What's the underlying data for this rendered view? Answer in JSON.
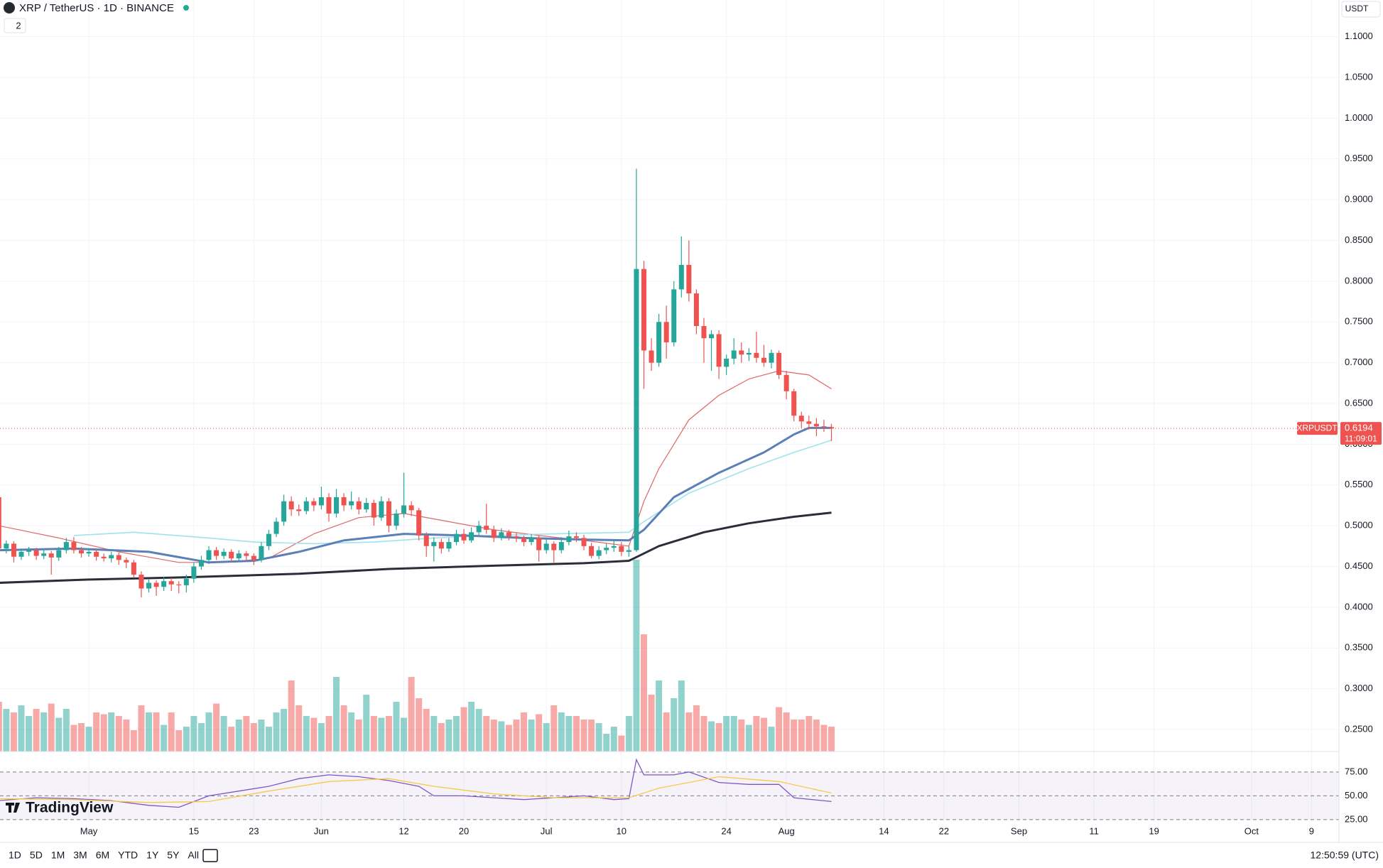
{
  "header": {
    "symbol": "XRP / TetherUS · 1D · BINANCE",
    "indicator_count": 2,
    "currency": "USDT"
  },
  "toolbar": {
    "timeframes": [
      "1D",
      "5D",
      "1M",
      "3M",
      "6M",
      "YTD",
      "1Y",
      "5Y",
      "All"
    ],
    "clock": "12:50:59 (UTC)",
    "brand": "TradingView"
  },
  "chart_data": {
    "type": "candlestick",
    "price_tag": "XRPUSDT",
    "last_price": 0.6194,
    "countdown": "11:09:01",
    "up_color": "#26a69a",
    "down_color": "#ef5350",
    "xlim": [
      0.16,
      178.66
    ],
    "xticks": [
      {
        "value": 12,
        "label": "May"
      },
      {
        "value": 26,
        "label": "15"
      },
      {
        "value": 34,
        "label": "23"
      },
      {
        "value": 43,
        "label": "Jun"
      },
      {
        "value": 54,
        "label": "12"
      },
      {
        "value": 62,
        "label": "20"
      },
      {
        "value": 73,
        "label": "Jul"
      },
      {
        "value": 83,
        "label": "10"
      },
      {
        "value": 97,
        "label": "24"
      },
      {
        "value": 105,
        "label": "Aug"
      },
      {
        "value": 118,
        "label": "14"
      },
      {
        "value": 126,
        "label": "22"
      },
      {
        "value": 136,
        "label": "Sep"
      },
      {
        "value": 146,
        "label": "11"
      },
      {
        "value": 154,
        "label": "19"
      },
      {
        "value": 167,
        "label": "Oct"
      },
      {
        "value": 175,
        "label": "9"
      }
    ],
    "ylim": [
      0.223,
      1.145
    ],
    "yticks": [
      {
        "value": 0.25,
        "label": "0.2500"
      },
      {
        "value": 0.3,
        "label": "0.3000"
      },
      {
        "value": 0.35,
        "label": "0.3500"
      },
      {
        "value": 0.4,
        "label": "0.4000"
      },
      {
        "value": 0.45,
        "label": "0.4500"
      },
      {
        "value": 0.5,
        "label": "0.5000"
      },
      {
        "value": 0.55,
        "label": "0.5500"
      },
      {
        "value": 0.6,
        "label": "0.6000"
      },
      {
        "value": 0.65,
        "label": "0.6500"
      },
      {
        "value": 0.7,
        "label": "0.7000"
      },
      {
        "value": 0.75,
        "label": "0.7500"
      },
      {
        "value": 0.8,
        "label": "0.8000"
      },
      {
        "value": 0.85,
        "label": "0.8500"
      },
      {
        "value": 0.9,
        "label": "0.9000"
      },
      {
        "value": 0.95,
        "label": "0.9500"
      },
      {
        "value": 1.0,
        "label": "1.0000"
      },
      {
        "value": 1.05,
        "label": "1.0500"
      },
      {
        "value": 1.1,
        "label": "1.1000"
      }
    ],
    "grid": true,
    "candles": [
      [
        0.535,
        0.54,
        0.468,
        0.472
      ],
      [
        0.472,
        0.482,
        0.466,
        0.478
      ],
      [
        0.478,
        0.481,
        0.455,
        0.462
      ],
      [
        0.462,
        0.472,
        0.458,
        0.468
      ],
      [
        0.468,
        0.474,
        0.463,
        0.47
      ],
      [
        0.47,
        0.473,
        0.458,
        0.463
      ],
      [
        0.463,
        0.47,
        0.459,
        0.466
      ],
      [
        0.466,
        0.469,
        0.44,
        0.461
      ],
      [
        0.461,
        0.474,
        0.457,
        0.47
      ],
      [
        0.47,
        0.485,
        0.466,
        0.48
      ],
      [
        0.48,
        0.486,
        0.466,
        0.47
      ],
      [
        0.47,
        0.474,
        0.461,
        0.466
      ],
      [
        0.466,
        0.472,
        0.462,
        0.468
      ],
      [
        0.468,
        0.471,
        0.457,
        0.462
      ],
      [
        0.462,
        0.466,
        0.456,
        0.46
      ],
      [
        0.46,
        0.468,
        0.455,
        0.464
      ],
      [
        0.464,
        0.467,
        0.452,
        0.458
      ],
      [
        0.458,
        0.461,
        0.448,
        0.455
      ],
      [
        0.455,
        0.458,
        0.436,
        0.44
      ],
      [
        0.44,
        0.444,
        0.412,
        0.423
      ],
      [
        0.423,
        0.434,
        0.418,
        0.43
      ],
      [
        0.43,
        0.433,
        0.414,
        0.425
      ],
      [
        0.425,
        0.437,
        0.42,
        0.432
      ],
      [
        0.432,
        0.436,
        0.42,
        0.428
      ],
      [
        0.428,
        0.432,
        0.417,
        0.427
      ],
      [
        0.427,
        0.44,
        0.418,
        0.435
      ],
      [
        0.435,
        0.455,
        0.43,
        0.45
      ],
      [
        0.45,
        0.463,
        0.446,
        0.458
      ],
      [
        0.458,
        0.475,
        0.453,
        0.47
      ],
      [
        0.47,
        0.474,
        0.458,
        0.463
      ],
      [
        0.463,
        0.472,
        0.459,
        0.468
      ],
      [
        0.468,
        0.471,
        0.455,
        0.46
      ],
      [
        0.46,
        0.47,
        0.456,
        0.466
      ],
      [
        0.466,
        0.469,
        0.456,
        0.463
      ],
      [
        0.463,
        0.466,
        0.452,
        0.458
      ],
      [
        0.458,
        0.48,
        0.455,
        0.475
      ],
      [
        0.475,
        0.495,
        0.47,
        0.49
      ],
      [
        0.49,
        0.51,
        0.486,
        0.505
      ],
      [
        0.505,
        0.538,
        0.5,
        0.53
      ],
      [
        0.53,
        0.536,
        0.512,
        0.52
      ],
      [
        0.52,
        0.526,
        0.512,
        0.518
      ],
      [
        0.518,
        0.535,
        0.514,
        0.53
      ],
      [
        0.53,
        0.534,
        0.518,
        0.525
      ],
      [
        0.525,
        0.548,
        0.52,
        0.535
      ],
      [
        0.535,
        0.54,
        0.505,
        0.515
      ],
      [
        0.515,
        0.545,
        0.51,
        0.535
      ],
      [
        0.535,
        0.54,
        0.518,
        0.525
      ],
      [
        0.525,
        0.542,
        0.52,
        0.53
      ],
      [
        0.53,
        0.535,
        0.514,
        0.52
      ],
      [
        0.52,
        0.534,
        0.516,
        0.528
      ],
      [
        0.528,
        0.532,
        0.5,
        0.51
      ],
      [
        0.51,
        0.536,
        0.506,
        0.53
      ],
      [
        0.53,
        0.534,
        0.492,
        0.5
      ],
      [
        0.5,
        0.52,
        0.495,
        0.515
      ],
      [
        0.515,
        0.565,
        0.51,
        0.525
      ],
      [
        0.525,
        0.53,
        0.512,
        0.519
      ],
      [
        0.519,
        0.522,
        0.482,
        0.488
      ],
      [
        0.488,
        0.492,
        0.462,
        0.475
      ],
      [
        0.475,
        0.486,
        0.456,
        0.48
      ],
      [
        0.48,
        0.484,
        0.466,
        0.472
      ],
      [
        0.472,
        0.485,
        0.468,
        0.48
      ],
      [
        0.48,
        0.495,
        0.476,
        0.49
      ],
      [
        0.49,
        0.496,
        0.478,
        0.482
      ],
      [
        0.482,
        0.498,
        0.479,
        0.492
      ],
      [
        0.492,
        0.506,
        0.488,
        0.5
      ],
      [
        0.5,
        0.527,
        0.49,
        0.495
      ],
      [
        0.495,
        0.5,
        0.48,
        0.485
      ],
      [
        0.485,
        0.497,
        0.482,
        0.492
      ],
      [
        0.492,
        0.495,
        0.482,
        0.487
      ],
      [
        0.487,
        0.492,
        0.48,
        0.485
      ],
      [
        0.485,
        0.488,
        0.475,
        0.48
      ],
      [
        0.48,
        0.49,
        0.476,
        0.485
      ],
      [
        0.485,
        0.488,
        0.456,
        0.47
      ],
      [
        0.47,
        0.483,
        0.466,
        0.478
      ],
      [
        0.478,
        0.481,
        0.455,
        0.47
      ],
      [
        0.47,
        0.486,
        0.466,
        0.48
      ],
      [
        0.48,
        0.494,
        0.476,
        0.487
      ],
      [
        0.487,
        0.492,
        0.48,
        0.485
      ],
      [
        0.485,
        0.489,
        0.47,
        0.475
      ],
      [
        0.475,
        0.479,
        0.46,
        0.463
      ],
      [
        0.463,
        0.475,
        0.459,
        0.47
      ],
      [
        0.47,
        0.478,
        0.465,
        0.473
      ],
      [
        0.473,
        0.482,
        0.468,
        0.475
      ],
      [
        0.475,
        0.48,
        0.463,
        0.468
      ],
      [
        0.468,
        0.475,
        0.462,
        0.47
      ],
      [
        0.47,
        0.938,
        0.468,
        0.815
      ],
      [
        0.815,
        0.825,
        0.668,
        0.715
      ],
      [
        0.715,
        0.73,
        0.69,
        0.7
      ],
      [
        0.7,
        0.76,
        0.695,
        0.75
      ],
      [
        0.75,
        0.77,
        0.705,
        0.725
      ],
      [
        0.725,
        0.8,
        0.72,
        0.79
      ],
      [
        0.79,
        0.855,
        0.78,
        0.82
      ],
      [
        0.82,
        0.85,
        0.775,
        0.785
      ],
      [
        0.785,
        0.79,
        0.735,
        0.745
      ],
      [
        0.745,
        0.755,
        0.7,
        0.73
      ],
      [
        0.73,
        0.74,
        0.69,
        0.735
      ],
      [
        0.735,
        0.74,
        0.68,
        0.695
      ],
      [
        0.695,
        0.71,
        0.685,
        0.705
      ],
      [
        0.705,
        0.73,
        0.698,
        0.715
      ],
      [
        0.715,
        0.725,
        0.7,
        0.71
      ],
      [
        0.71,
        0.718,
        0.702,
        0.712
      ],
      [
        0.712,
        0.738,
        0.7,
        0.706
      ],
      [
        0.706,
        0.722,
        0.695,
        0.7
      ],
      [
        0.7,
        0.716,
        0.693,
        0.712
      ],
      [
        0.712,
        0.715,
        0.68,
        0.685
      ],
      [
        0.685,
        0.69,
        0.655,
        0.665
      ],
      [
        0.665,
        0.668,
        0.628,
        0.635
      ],
      [
        0.635,
        0.64,
        0.62,
        0.628
      ],
      [
        0.628,
        0.635,
        0.618,
        0.625
      ],
      [
        0.625,
        0.632,
        0.61,
        0.622
      ],
      [
        0.622,
        0.63,
        0.615,
        0.621
      ],
      [
        0.621,
        0.625,
        0.604,
        0.6194
      ]
    ],
    "volume": [
      140,
      120,
      110,
      130,
      100,
      120,
      110,
      135,
      95,
      120,
      75,
      80,
      70,
      110,
      105,
      110,
      100,
      90,
      60,
      130,
      110,
      110,
      75,
      110,
      60,
      70,
      100,
      80,
      110,
      135,
      100,
      70,
      90,
      100,
      80,
      90,
      70,
      110,
      120,
      200,
      130,
      100,
      95,
      80,
      100,
      210,
      130,
      110,
      90,
      160,
      100,
      95,
      100,
      140,
      95,
      210,
      150,
      120,
      100,
      80,
      90,
      100,
      125,
      140,
      120,
      100,
      90,
      85,
      75,
      90,
      110,
      90,
      105,
      80,
      130,
      110,
      100,
      100,
      90,
      90,
      80,
      50,
      70,
      45,
      100,
      540,
      330,
      160,
      200,
      110,
      150,
      200,
      110,
      130,
      100,
      85,
      80,
      100,
      100,
      90,
      75,
      100,
      95,
      70,
      125,
      110,
      90,
      90,
      100,
      90,
      75,
      70
    ],
    "volume_lim": [
      0,
      1000
    ],
    "moving_averages": [
      {
        "color": "#e06666",
        "width": 1.2,
        "x": [
          0,
          8,
          16,
          24,
          30,
          36,
          42,
          48,
          54,
          60,
          66,
          72,
          78,
          84,
          86,
          88,
          92,
          96,
          100,
          104,
          108,
          111
        ],
        "values": [
          0.5,
          0.485,
          0.468,
          0.455,
          0.455,
          0.46,
          0.49,
          0.51,
          0.515,
          0.505,
          0.495,
          0.488,
          0.482,
          0.475,
          0.53,
          0.57,
          0.63,
          0.66,
          0.68,
          0.69,
          0.685,
          0.668
        ]
      },
      {
        "color": "#9fe3ef",
        "width": 1.6,
        "x": [
          10,
          18,
          28,
          34,
          42,
          50,
          58,
          66,
          74,
          84,
          86,
          92,
          100,
          106,
          111
        ],
        "values": [
          0.488,
          0.492,
          0.485,
          0.48,
          0.478,
          0.48,
          0.485,
          0.488,
          0.49,
          0.492,
          0.505,
          0.54,
          0.57,
          0.59,
          0.605
        ]
      },
      {
        "color": "#5b7fb7",
        "width": 3,
        "x": [
          0,
          10,
          20,
          28,
          34,
          40,
          46,
          54,
          62,
          70,
          78,
          84,
          86,
          90,
          96,
          102,
          106,
          108,
          111
        ],
        "values": [
          0.47,
          0.472,
          0.468,
          0.455,
          0.457,
          0.468,
          0.482,
          0.49,
          0.488,
          0.485,
          0.483,
          0.482,
          0.495,
          0.535,
          0.565,
          0.59,
          0.612,
          0.62,
          0.62
        ]
      },
      {
        "color": "#2a2e39",
        "width": 3,
        "x": [
          0,
          12,
          26,
          40,
          52,
          66,
          78,
          84,
          88,
          94,
          100,
          106,
          111
        ],
        "values": [
          0.43,
          0.434,
          0.437,
          0.441,
          0.447,
          0.451,
          0.454,
          0.457,
          0.475,
          0.492,
          0.503,
          0.511,
          0.516
        ]
      }
    ],
    "rsi_lim": [
      22.7,
      96.5
    ],
    "rsi_ticks": [
      {
        "value": 75,
        "label": "75.00"
      },
      {
        "value": 50,
        "label": "50.00"
      },
      {
        "value": 25,
        "label": "25.00"
      }
    ],
    "rsi": {
      "color": "#7e57c2",
      "x": [
        0,
        5,
        10,
        15,
        20,
        24,
        28,
        32,
        36,
        40,
        44,
        48,
        52,
        56,
        58,
        62,
        66,
        70,
        74,
        78,
        82,
        84,
        85,
        86,
        90,
        92,
        96,
        100,
        104,
        106,
        111
      ],
      "values": [
        45,
        48,
        47,
        45,
        40,
        38,
        50,
        55,
        60,
        68,
        72,
        70,
        66,
        60,
        50,
        50,
        48,
        46,
        48,
        50,
        46,
        47,
        88,
        72,
        72,
        75,
        64,
        62,
        62,
        48,
        44
      ]
    },
    "rsi_ma": {
      "color": "#f7c948",
      "x": [
        0,
        10,
        20,
        28,
        36,
        44,
        52,
        58,
        66,
        74,
        84,
        88,
        96,
        104,
        111
      ],
      "values": [
        47,
        46,
        43,
        44,
        55,
        65,
        68,
        60,
        52,
        48,
        48,
        58,
        70,
        65,
        53
      ]
    }
  }
}
